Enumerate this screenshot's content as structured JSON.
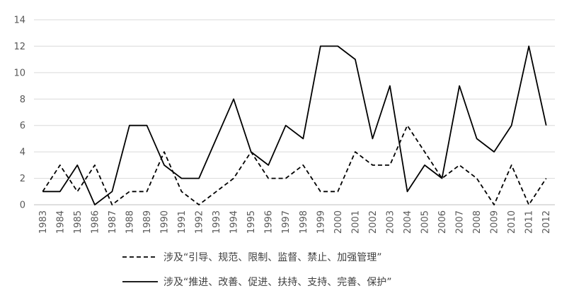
{
  "chart_data": {
    "type": "line",
    "title": "",
    "xlabel": "",
    "ylabel": "",
    "categories": [
      "1983",
      "1984",
      "1985",
      "1986",
      "1987",
      "1988",
      "1989",
      "1990",
      "1991",
      "1992",
      "1993",
      "1994",
      "1995",
      "1996",
      "1997",
      "1998",
      "1999",
      "2000",
      "2001",
      "2002",
      "2003",
      "2004",
      "2005",
      "2006",
      "2007",
      "2008",
      "2009",
      "2010",
      "2011",
      "2012"
    ],
    "ylim": [
      0,
      14
    ],
    "yticks": [
      "0",
      "2",
      "4",
      "6",
      "8",
      "10",
      "12",
      "14"
    ],
    "grid": "horizontal",
    "legend_position": "bottom",
    "series": [
      {
        "name": "涉及“引导、规范、限制、监督、禁止、加强管理”",
        "style": "dashed",
        "color": "#000000",
        "values": [
          1,
          3,
          1,
          3,
          0,
          1,
          1,
          4,
          1,
          0,
          1,
          2,
          4,
          2,
          2,
          3,
          1,
          1,
          4,
          3,
          3,
          6,
          4,
          2,
          3,
          2,
          0,
          3,
          0,
          2
        ]
      },
      {
        "name": "涉及“推进、改善、促进、扶持、支持、完善、保护”",
        "style": "solid",
        "color": "#000000",
        "values": [
          1,
          1,
          3,
          0,
          1,
          6,
          6,
          3,
          2,
          2,
          5,
          8,
          4,
          3,
          6,
          5,
          12,
          12,
          11,
          5,
          9,
          1,
          3,
          2,
          9,
          5,
          4,
          6,
          12,
          6
        ]
      }
    ]
  }
}
